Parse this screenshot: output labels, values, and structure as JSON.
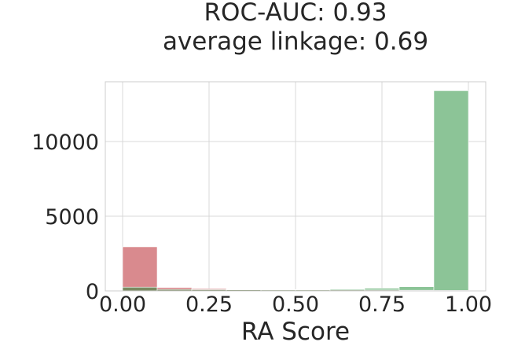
{
  "chart_data": {
    "type": "bar",
    "title_lines": [
      "ROC-AUC: 0.93",
      "average linkage: 0.69"
    ],
    "xlabel": "RA Score",
    "ylabel": "",
    "xlim": [
      -0.05,
      1.05
    ],
    "ylim": [
      0,
      14000
    ],
    "xticks": [
      0.0,
      0.25,
      0.5,
      0.75,
      1.0
    ],
    "xtick_labels": [
      "0.00",
      "0.25",
      "0.50",
      "0.75",
      "1.00"
    ],
    "yticks": [
      0,
      5000,
      10000
    ],
    "ytick_labels": [
      "0",
      "5000",
      "10000"
    ],
    "grid": true,
    "bin_edges": [
      0.0,
      0.1,
      0.2,
      0.3,
      0.4,
      0.5,
      0.6,
      0.7,
      0.8,
      0.9,
      1.0
    ],
    "series": [
      {
        "color": "#d98a8e",
        "values": [
          2950,
          230,
          150,
          90,
          70,
          60,
          60,
          55,
          40,
          30
        ]
      },
      {
        "color": "#8cc497",
        "values": [
          250,
          100,
          80,
          70,
          60,
          90,
          120,
          180,
          280,
          13400
        ]
      }
    ],
    "overlap_color": "#7a8a62"
  }
}
